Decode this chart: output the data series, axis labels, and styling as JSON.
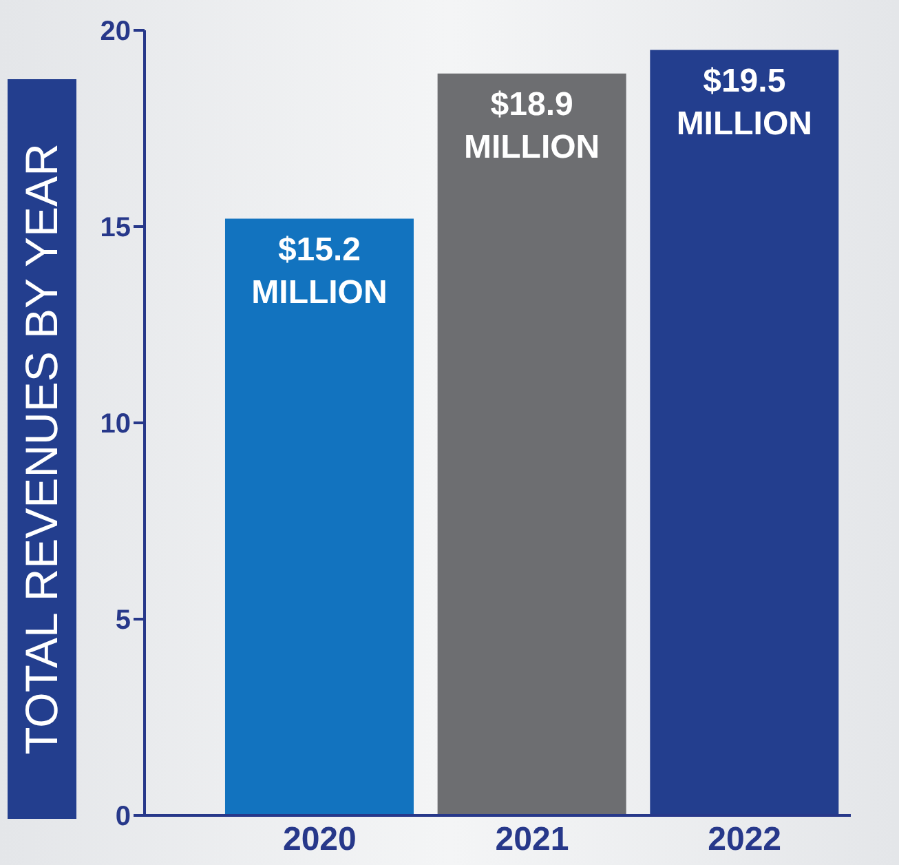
{
  "chart_data": {
    "type": "bar",
    "ylabel": "TOTAL REVENUES BY YEAR",
    "categories": [
      "2020",
      "2021",
      "2022"
    ],
    "values": [
      15.2,
      18.9,
      19.5
    ],
    "colors": [
      "#1273bf",
      "#6d6e71",
      "#233e8e"
    ],
    "value_labels": [
      "$15.2 MILLION",
      "$18.9 MILLION",
      "$19.5 MILLION"
    ],
    "ylim": [
      0,
      20
    ],
    "yticks": [
      0,
      5,
      10,
      15,
      20
    ]
  }
}
